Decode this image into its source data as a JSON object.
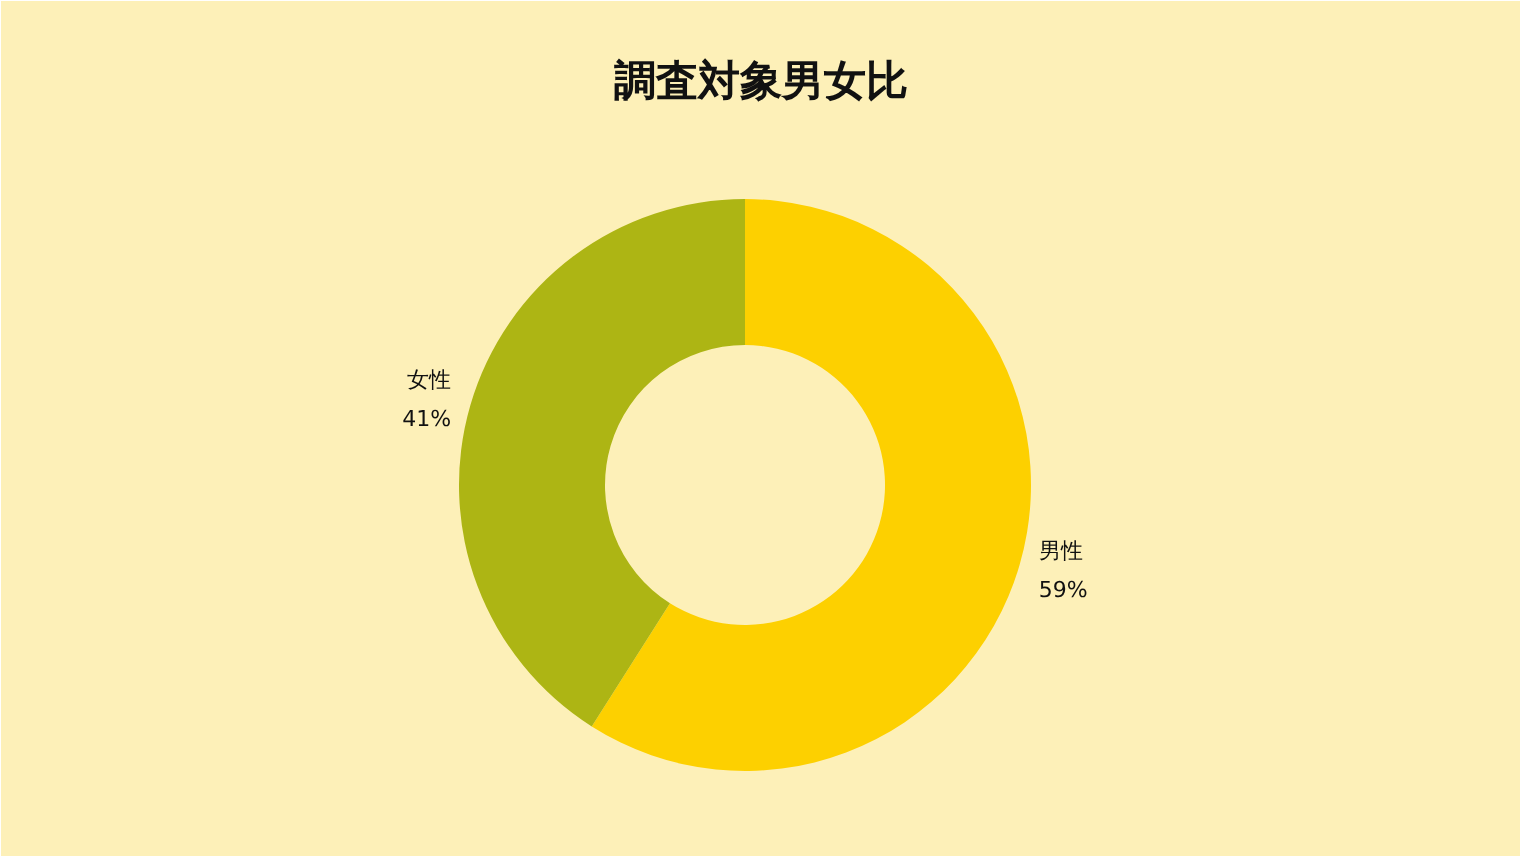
{
  "chart_data": {
    "type": "donut",
    "title": "調査対象男女比",
    "categories": [
      "男性",
      "女性"
    ],
    "values": [
      59,
      41
    ],
    "colors": [
      "#fdd000",
      "#adb514"
    ],
    "value_labels": [
      "59%",
      "41%"
    ]
  }
}
